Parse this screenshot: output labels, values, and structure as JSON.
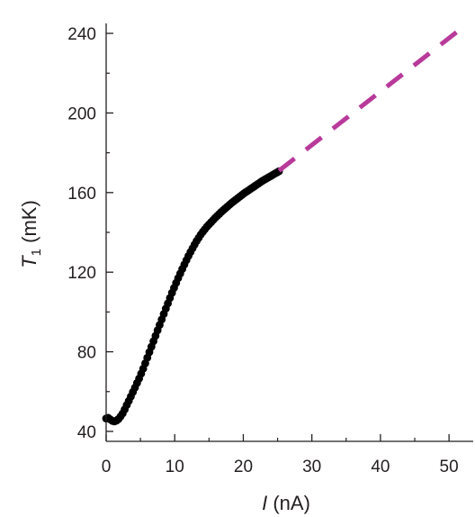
{
  "chart_data": {
    "type": "scatter",
    "title": "",
    "xlabel": {
      "symbol": "I",
      "unit": " (nA)"
    },
    "ylabel": {
      "symbol": "T",
      "subscript": "1",
      "unit": " (mK)"
    },
    "xlim": [
      0,
      53
    ],
    "ylim": [
      35,
      245
    ],
    "x_ticks": [
      0,
      10,
      20,
      30,
      40,
      50
    ],
    "y_ticks": [
      40,
      80,
      120,
      160,
      200,
      240
    ],
    "x_minor_step": 5,
    "y_minor_step": 20,
    "grid": false,
    "legend": "none",
    "series": [
      {
        "kind": "markers",
        "color": "#000000",
        "points": [
          [
            0.0,
            46.5
          ],
          [
            0.3,
            46.8
          ],
          [
            0.6,
            46.0
          ],
          [
            0.9,
            45.3
          ],
          [
            1.2,
            45.0
          ],
          [
            1.5,
            45.4
          ],
          [
            1.8,
            46.2
          ],
          [
            2.1,
            47.5
          ],
          [
            2.4,
            49.0
          ],
          [
            2.7,
            51.0
          ],
          [
            3.0,
            53.2
          ],
          [
            3.3,
            55.3
          ],
          [
            3.6,
            57.5
          ],
          [
            3.9,
            59.8
          ],
          [
            4.2,
            62.0
          ],
          [
            4.5,
            64.3
          ],
          [
            4.8,
            66.5
          ],
          [
            5.1,
            69.0
          ],
          [
            5.4,
            71.5
          ],
          [
            5.7,
            74.2
          ],
          [
            6.0,
            77.0
          ],
          [
            6.3,
            79.8
          ],
          [
            6.6,
            82.5
          ],
          [
            6.9,
            85.3
          ],
          [
            7.2,
            88.0
          ],
          [
            7.5,
            90.8
          ],
          [
            7.8,
            93.5
          ],
          [
            8.1,
            96.2
          ],
          [
            8.4,
            99.0
          ],
          [
            8.7,
            101.7
          ],
          [
            9.0,
            104.3
          ],
          [
            9.3,
            107.0
          ],
          [
            9.6,
            109.6
          ],
          [
            9.9,
            112.1
          ],
          [
            10.2,
            114.6
          ],
          [
            10.5,
            117.0
          ],
          [
            10.8,
            119.3
          ],
          [
            11.1,
            121.6
          ],
          [
            11.4,
            123.8
          ],
          [
            11.7,
            126.0
          ],
          [
            12.0,
            128.1
          ],
          [
            12.3,
            130.1
          ],
          [
            12.6,
            132.0
          ],
          [
            12.9,
            133.9
          ],
          [
            13.2,
            135.7
          ],
          [
            13.5,
            137.3
          ],
          [
            13.8,
            138.9
          ],
          [
            14.1,
            140.3
          ],
          [
            14.4,
            141.6
          ],
          [
            14.7,
            142.9
          ],
          [
            15.0,
            144.0
          ],
          [
            15.3,
            145.1
          ],
          [
            15.6,
            146.2
          ],
          [
            15.9,
            147.3
          ],
          [
            16.2,
            148.3
          ],
          [
            16.5,
            149.3
          ],
          [
            16.8,
            150.3
          ],
          [
            17.1,
            151.2
          ],
          [
            17.4,
            152.1
          ],
          [
            17.7,
            153.0
          ],
          [
            18.0,
            153.9
          ],
          [
            18.3,
            154.8
          ],
          [
            18.6,
            155.6
          ],
          [
            18.9,
            156.4
          ],
          [
            19.2,
            157.2
          ],
          [
            19.5,
            158.0
          ],
          [
            19.8,
            158.8
          ],
          [
            20.1,
            159.6
          ],
          [
            20.4,
            160.3
          ],
          [
            20.7,
            161.0
          ],
          [
            21.0,
            161.7
          ],
          [
            21.3,
            162.4
          ],
          [
            21.6,
            163.1
          ],
          [
            21.9,
            163.8
          ],
          [
            22.2,
            164.5
          ],
          [
            22.5,
            165.2
          ],
          [
            22.8,
            165.9
          ],
          [
            23.1,
            166.5
          ],
          [
            23.4,
            167.1
          ],
          [
            23.7,
            167.7
          ],
          [
            24.0,
            168.3
          ],
          [
            24.3,
            168.9
          ],
          [
            24.6,
            169.5
          ],
          [
            24.9,
            170.1
          ],
          [
            25.2,
            170.7
          ]
        ]
      },
      {
        "kind": "dashed-line",
        "color": "#b83a9a",
        "points": [
          [
            25.2,
            171.0
          ],
          [
            52.0,
            243.0
          ]
        ]
      }
    ]
  }
}
